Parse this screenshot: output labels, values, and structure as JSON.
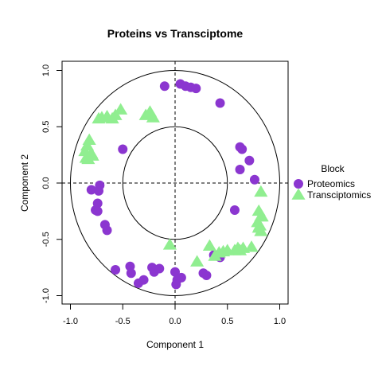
{
  "chart_data": {
    "type": "scatter",
    "title": "Proteins vs Transciptome",
    "xlabel": "Component 1",
    "ylabel": "Component 2",
    "xlim": [
      -1.0,
      1.0
    ],
    "ylim": [
      -1.0,
      1.0
    ],
    "xticks": [
      "-1.0",
      "-0.5",
      "0.0",
      "0.5",
      "1.0"
    ],
    "yticks": [
      "-1.0",
      "-0.5",
      "0.0",
      "0.5",
      "1.0"
    ],
    "grid": false,
    "legend_placement": "right",
    "legend_title": "Block",
    "circles": [
      1.0,
      0.5
    ],
    "reference_lines": {
      "x": 0,
      "y": 0,
      "style": "dashed"
    },
    "series": [
      {
        "name": "Proteomics",
        "color": "#8B36D0",
        "marker": "circle",
        "x": [
          -0.1,
          0.05,
          0.1,
          0.15,
          0.2,
          0.43,
          0.62,
          0.64,
          0.71,
          0.62,
          0.76,
          0.57,
          -0.5,
          -0.72,
          -0.8,
          -0.73,
          -0.74,
          -0.76,
          -0.74,
          -0.67,
          -0.65,
          -0.57,
          -0.43,
          -0.42,
          -0.35,
          -0.3,
          -0.22,
          -0.2,
          -0.15,
          0.0,
          0.02,
          0.01,
          0.06,
          0.27,
          0.3,
          0.37,
          0.43
        ],
        "y": [
          0.86,
          0.88,
          0.86,
          0.85,
          0.84,
          0.71,
          0.32,
          0.3,
          0.2,
          0.12,
          0.03,
          -0.24,
          0.3,
          -0.02,
          -0.06,
          -0.07,
          -0.18,
          -0.24,
          -0.25,
          -0.37,
          -0.42,
          -0.77,
          -0.74,
          -0.8,
          -0.89,
          -0.86,
          -0.75,
          -0.79,
          -0.76,
          -0.79,
          -0.86,
          -0.9,
          -0.84,
          -0.8,
          -0.82,
          -0.64,
          -0.66
        ]
      },
      {
        "name": "Transciptomics",
        "color": "#90EE90",
        "marker": "triangle",
        "x": [
          -0.52,
          -0.57,
          -0.6,
          -0.65,
          -0.7,
          -0.73,
          -0.28,
          -0.24,
          -0.21,
          -0.82,
          -0.84,
          -0.86,
          -0.8,
          -0.79,
          -0.85,
          -0.83,
          0.82,
          0.8,
          0.82,
          0.79,
          0.83,
          0.81,
          0.8,
          0.82,
          0.73,
          0.65,
          0.62,
          0.6,
          0.57,
          0.5,
          0.46,
          0.42,
          0.38,
          0.33,
          0.21,
          -0.05
        ],
        "y": [
          0.65,
          0.6,
          0.57,
          0.59,
          0.58,
          0.57,
          0.6,
          0.63,
          0.58,
          0.38,
          0.33,
          0.28,
          0.26,
          0.24,
          0.22,
          0.21,
          -0.08,
          -0.25,
          -0.3,
          -0.35,
          -0.3,
          -0.38,
          -0.4,
          -0.43,
          -0.57,
          -0.58,
          -0.6,
          -0.58,
          -0.6,
          -0.6,
          -0.61,
          -0.62,
          -0.65,
          -0.56,
          -0.7,
          -0.55
        ]
      }
    ]
  }
}
